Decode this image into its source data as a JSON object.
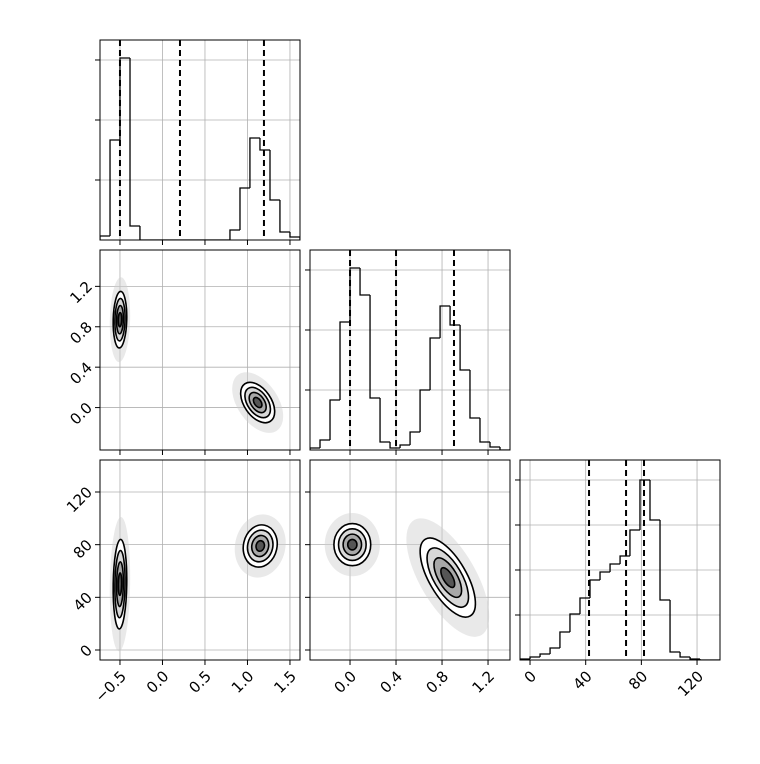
{
  "chart_data": [
    {
      "type": "histogram",
      "bins": [
        -0.735,
        -0.617,
        -0.5,
        -0.382,
        -0.265,
        -0.147,
        -0.029,
        0.088,
        0.206,
        0.324,
        0.441,
        0.559,
        0.676,
        0.794,
        0.912,
        1.029,
        1.147,
        1.265,
        1.382,
        1.5,
        1.618
      ],
      "counts": [
        67,
        1667,
        3033,
        233,
        0,
        0,
        0,
        0,
        0,
        0,
        0,
        0,
        0,
        167,
        867,
        1700,
        1500,
        667,
        133,
        50
      ],
      "quantiles": [
        -0.5,
        0.206,
        1.194
      ],
      "xlim": [
        -0.735,
        1.618
      ],
      "xticks": [
        -0.5,
        0,
        0.5,
        1,
        1.5
      ],
      "ylim": [
        0,
        3333
      ],
      "yticks": [
        1000,
        2000,
        3000
      ],
      "grid": true,
      "color": "#000000"
    },
    {
      "type": "density",
      "clusters": [
        {
          "x": -0.5,
          "y": 0.87,
          "sx": 0.04,
          "sy": 0.14,
          "rho": 0.1
        },
        {
          "x": 1.12,
          "y": 0.05,
          "sx": 0.1,
          "sy": 0.1,
          "rho": -0.45
        }
      ],
      "xlim": [
        -0.735,
        1.618
      ],
      "xticks": [
        -0.5,
        0,
        0.5,
        1,
        1.5
      ],
      "ylim": [
        -0.42,
        1.56
      ],
      "yticks": [
        {
          "value": 0,
          "label": "0.0"
        },
        {
          "value": 0.4,
          "label": "0.4"
        },
        {
          "value": 0.8,
          "label": "0.8"
        },
        {
          "value": 1.2,
          "label": "1.2"
        }
      ],
      "grid": true,
      "color": "#000000"
    },
    {
      "type": "histogram",
      "bins": [
        -0.348,
        -0.261,
        -0.174,
        -0.087,
        0,
        0.087,
        0.174,
        0.261,
        0.348,
        0.435,
        0.522,
        0.609,
        0.696,
        0.783,
        0.87,
        0.957,
        1.043,
        1.13,
        1.217,
        1.304,
        1.391
      ],
      "counts": [
        33,
        167,
        833,
        2133,
        3033,
        2583,
        867,
        133,
        33,
        83,
        300,
        1000,
        1867,
        2400,
        2083,
        1333,
        533,
        133,
        50,
        0
      ],
      "quantiles": [
        0,
        0.4,
        0.904
      ],
      "xlim": [
        -0.348,
        1.391
      ],
      "xticks": [
        0,
        0.4,
        0.8,
        1.2
      ],
      "ylim": [
        0,
        3333
      ],
      "yticks": [
        1000,
        2000,
        3000
      ],
      "grid": true,
      "color": "#000000"
    },
    {
      "type": "density",
      "clusters": [
        {
          "x": -0.5,
          "y": 50,
          "sx": 0.04,
          "sy": 17,
          "rho": 0.1
        },
        {
          "x": 1.15,
          "y": 79,
          "sx": 0.1,
          "sy": 8,
          "rho": 0.1
        }
      ],
      "xlim": [
        -0.735,
        1.618
      ],
      "xticks": [
        {
          "value": -0.5,
          "label": "−0.5"
        },
        {
          "value": 0,
          "label": "0.0"
        },
        {
          "value": 0.5,
          "label": "0.5"
        },
        {
          "value": 1,
          "label": "1.0"
        },
        {
          "value": 1.5,
          "label": "1.5"
        }
      ],
      "ylim": [
        -7.6,
        144.3
      ],
      "yticks": [
        0,
        40,
        80,
        120
      ],
      "grid": true,
      "color": "#000000"
    },
    {
      "type": "density",
      "clusters": [
        {
          "x": 0.02,
          "y": 80,
          "sx": 0.08,
          "sy": 8,
          "rho": 0
        },
        {
          "x": 0.85,
          "y": 55,
          "sx": 0.12,
          "sy": 15,
          "rho": -0.65
        }
      ],
      "xlim": [
        -0.348,
        1.391
      ],
      "xticks": [
        {
          "value": 0,
          "label": "0.0"
        },
        {
          "value": 0.4,
          "label": "0.4"
        },
        {
          "value": 0.8,
          "label": "0.8"
        },
        {
          "value": 1.2,
          "label": "1.2"
        }
      ],
      "ylim": [
        -7.6,
        144.3
      ],
      "yticks": [
        0,
        40,
        80,
        120
      ],
      "grid": true,
      "color": "#000000"
    },
    {
      "type": "histogram",
      "bins": [
        -7.2,
        0,
        7.2,
        14.4,
        21.5,
        28.7,
        35.9,
        43.1,
        50.3,
        57.5,
        64.7,
        71.8,
        79,
        86.2,
        93.4,
        100.6,
        107.8,
        115,
        122.1,
        129.3,
        136.5
      ],
      "counts": [
        17,
        50,
        100,
        200,
        467,
        767,
        1033,
        1333,
        1467,
        1600,
        1733,
        2167,
        3000,
        2333,
        1000,
        133,
        50,
        17,
        0,
        0
      ],
      "quantiles": [
        42.4,
        69,
        81.9
      ],
      "xlim": [
        -7.2,
        136.5
      ],
      "xticks": [
        0,
        40,
        80,
        120
      ],
      "ylim": [
        0,
        3333
      ],
      "yticks": [
        750,
        1500,
        2250,
        3000
      ],
      "grid": true,
      "color": "#000000"
    }
  ]
}
